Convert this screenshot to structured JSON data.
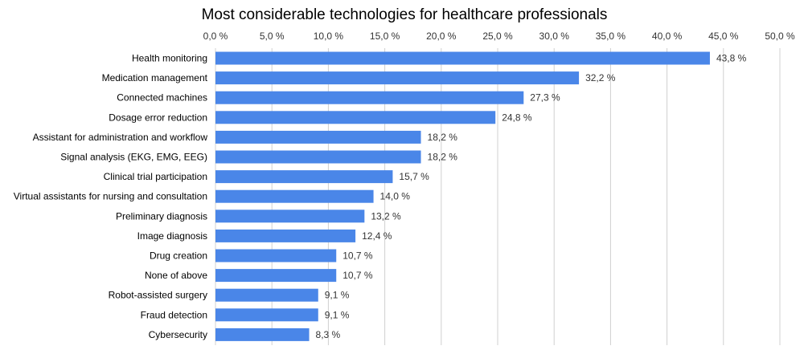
{
  "chart_data": {
    "type": "bar",
    "orientation": "horizontal",
    "title": "Most considerable technologies for healthcare professionals",
    "categories": [
      "Health monitoring",
      "Medication management",
      "Connected machines",
      "Dosage error reduction",
      "Assistant for administration and workflow",
      "Signal analysis (EKG, EMG, EEG)",
      "Clinical trial participation",
      "Virtual assistants for nursing and consultation",
      "Preliminary diagnosis",
      "Image diagnosis",
      "Drug creation",
      "None of above",
      "Robot-assisted surgery",
      "Fraud detection",
      "Cybersecurity"
    ],
    "values": [
      43.8,
      32.2,
      27.3,
      24.8,
      18.2,
      18.2,
      15.7,
      14.0,
      13.2,
      12.4,
      10.7,
      10.7,
      9.1,
      9.1,
      8.3
    ],
    "value_labels": [
      "43,8 %",
      "32,2 %",
      "27,3 %",
      "24,8 %",
      "18,2 %",
      "18,2 %",
      "15,7 %",
      "14,0 %",
      "13,2 %",
      "12,4 %",
      "10,7 %",
      "10,7 %",
      "9,1 %",
      "9,1 %",
      "8,3 %"
    ],
    "x_ticks": [
      "0,0 %",
      "5,0 %",
      "10,0 %",
      "15,0 %",
      "20,0 %",
      "25,0 %",
      "30,0 %",
      "35,0 %",
      "40,0 %",
      "45,0 %",
      "50,0 %"
    ],
    "xlim": [
      0,
      50
    ],
    "x_axis_position": "top",
    "grid": true,
    "legend": "none",
    "bar_color": "#4a86e8"
  }
}
